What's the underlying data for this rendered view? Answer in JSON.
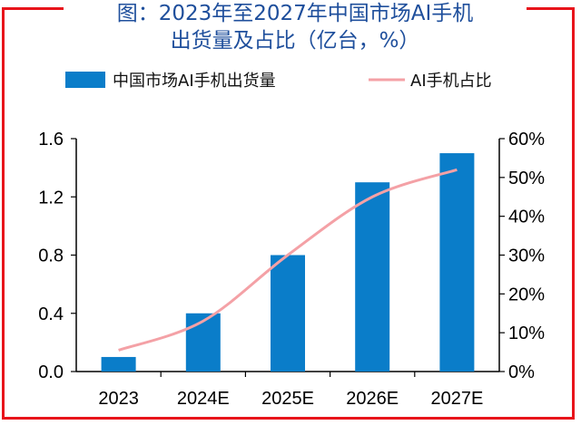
{
  "chart_data": {
    "type": "bar+line",
    "title": "图：2023年至2027年中国市场AI手机",
    "subtitle": "出货量及占比（亿台，%）",
    "categories": [
      "2023",
      "2024E",
      "2025E",
      "2026E",
      "2027E"
    ],
    "series": [
      {
        "name": "中国市场AI手机出货量",
        "type": "bar",
        "axis": "left",
        "values": [
          0.1,
          0.4,
          0.8,
          1.3,
          1.5
        ]
      },
      {
        "name": "AI手机占比",
        "type": "line",
        "axis": "right",
        "values": [
          5.5,
          13,
          30,
          45,
          52
        ]
      }
    ],
    "y_left": {
      "ylim": [
        0,
        1.6
      ],
      "ticks": [
        "0.0",
        "0.4",
        "0.8",
        "1.2",
        "1.6"
      ]
    },
    "y_right": {
      "ylim": [
        0,
        60
      ],
      "ticks": [
        "0%",
        "10%",
        "20%",
        "30%",
        "40%",
        "50%",
        "60%"
      ]
    },
    "legend_position": "top",
    "colors": {
      "bar": "#0a7dc9",
      "line": "#f4a1a6",
      "title": "#1f4f9c",
      "frame": "#e8141b"
    }
  }
}
